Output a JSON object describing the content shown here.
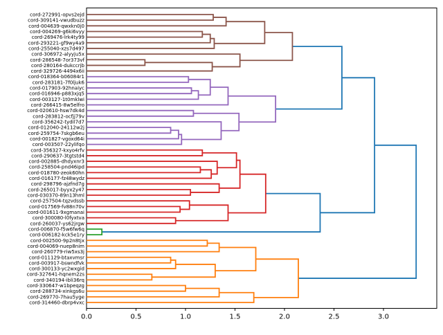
{
  "chart_data": {
    "type": "dendrogram",
    "orientation": "left_labels_right_growing",
    "title": "",
    "xlabel": "",
    "ylabel": "",
    "grid": false,
    "xlim": [
      0,
      3.54
    ],
    "x_tick_labels": [
      "0.0",
      "0.5",
      "1.0",
      "1.5",
      "2.0",
      "2.5",
      "3.0"
    ],
    "x_tick_values": [
      0.0,
      0.5,
      1.0,
      1.5,
      2.0,
      2.5,
      3.0
    ],
    "palette": {
      "blue": "#1f77b4",
      "orange": "#ff7f0e",
      "green": "#2ca02c",
      "red": "#d62728",
      "purple": "#9467bd",
      "brown": "#8c564b",
      "frame": "#000000"
    },
    "leaf_labels": [
      "cord-272991-opvs2ejd",
      "cord-309141-vwudbuzz",
      "cord-004639-qwxkn0j0",
      "cord-004269-g6ki6vyy",
      "cord-269476-lrk4ty99",
      "cord-293221-gf9wy4a9",
      "cord-255040-xzs7d497",
      "cord-306972-alyyju5x",
      "cord-286548-7or373vf",
      "cord-280164-dukccrjb",
      "cord-329726-4494x6ii",
      "cord-018364-b06084r1",
      "cord-283181-7f0ljuk6",
      "cord-017903-92hnaiyc",
      "cord-016946-p883xjq5",
      "cord-003127-1t0mklwi",
      "cord-266415-8w5elfro",
      "cord-020610-hsw7dk4d",
      "cord-283812-ocfjj79v",
      "cord-356242-tydil7d7",
      "cord-012040-24112w2j",
      "cord-259754-7skgb6eu",
      "cord-001827-vgoxd64i",
      "cord-003507-22ylifqo",
      "cord-356327-kxyo4rfv",
      "cord-290637-3tgtstd4",
      "cord-002885-dhdyxnr3",
      "cord-258504-pnd46ipd",
      "cord-018780-zeok60hn",
      "cord-016177-fz48wydz",
      "cord-298796-ajzfnd7g",
      "cord-265017-byyx2y47",
      "cord-030370-89n13hml",
      "cord-257504-tqzvdssb",
      "cord-017569-fv88n70v",
      "cord-001611-9xgmanai",
      "cord-300080-l0fyxtva",
      "cord-260037-ys62jrgw",
      "cord-006870-f5w6fw6q",
      "cord-006182-kck5e1ry",
      "cord-002500-9p2n8tjx",
      "cord-004069-nuep8nim",
      "cord-260779-riw5xs3j",
      "cord-011129-btaxvmsr",
      "cord-003917-bswndfvk",
      "cord-300133-yc2wxgid",
      "cord-327641-hqnem2zs",
      "cord-340194-ibli36rq",
      "cord-330647-w1bpeqzg",
      "cord-288734-xinkgs6u",
      "cord-269770-7hau5yge",
      "cord-314460-dbrp4vxc"
    ],
    "tree": {
      "d": 3.33,
      "c": "blue",
      "ch": [
        {
          "d": 2.91,
          "c": "blue",
          "ch": [
            {
              "d": 2.58,
              "c": "blue",
              "ch": [
                {
                  "d": 2.08,
                  "c": "brown",
                  "ch": [
                    {
                      "d": 1.8,
                      "c": "brown",
                      "ch": [
                        {
                          "d": 1.41,
                          "c": "brown",
                          "ch": [
                            {
                              "d": 1.28,
                              "c": "brown",
                              "ch": [
                                {
                                  "leaf": 0
                                },
                                {
                                  "leaf": 1
                                }
                              ]
                            },
                            {
                              "leaf": 2
                            }
                          ]
                        },
                        {
                          "d": 1.29,
                          "c": "brown",
                          "ch": [
                            {
                              "d": 1.25,
                              "c": "brown",
                              "ch": [
                                {
                                  "d": 1.17,
                                  "c": "brown",
                                  "ch": [
                                    {
                                      "leaf": 3
                                    },
                                    {
                                      "leaf": 4
                                    }
                                  ]
                                },
                                {
                                  "leaf": 5
                                }
                              ]
                            },
                            {
                              "leaf": 6
                            }
                          ]
                        }
                      ]
                    },
                    {
                      "d": 1.55,
                      "c": "brown",
                      "ch": [
                        {
                          "leaf": 7
                        },
                        {
                          "d": 1.27,
                          "c": "brown",
                          "ch": [
                            {
                              "d": 0.59,
                              "c": "brown",
                              "ch": [
                                {
                                  "leaf": 8
                                },
                                {
                                  "leaf": 9
                                }
                              ]
                            },
                            {
                              "leaf": 10
                            }
                          ]
                        }
                      ]
                    }
                  ]
                },
                {
                  "d": 1.91,
                  "c": "purple",
                  "ch": [
                    {
                      "d": 1.43,
                      "c": "purple",
                      "ch": [
                        {
                          "d": 1.25,
                          "c": "purple",
                          "ch": [
                            {
                              "d": 1.03,
                              "c": "purple",
                              "ch": [
                                {
                                  "leaf": 11
                                },
                                {
                                  "leaf": 12
                                }
                              ]
                            },
                            {
                              "d": 1.13,
                              "c": "purple",
                              "ch": [
                                {
                                  "d": 1.06,
                                  "c": "purple",
                                  "ch": [
                                    {
                                      "leaf": 13
                                    },
                                    {
                                      "leaf": 14
                                    }
                                  ]
                                },
                                {
                                  "leaf": 15
                                }
                              ]
                            }
                          ]
                        },
                        {
                          "leaf": 16
                        }
                      ]
                    },
                    {
                      "d": 1.54,
                      "c": "purple",
                      "ch": [
                        {
                          "d": 1.08,
                          "c": "purple",
                          "ch": [
                            {
                              "leaf": 17
                            },
                            {
                              "leaf": 18
                            }
                          ]
                        },
                        {
                          "d": 1.36,
                          "c": "purple",
                          "ch": [
                            {
                              "leaf": 19
                            },
                            {
                              "d": 0.96,
                              "c": "purple",
                              "ch": [
                                {
                                  "d": 0.93,
                                  "c": "purple",
                                  "ch": [
                                    {
                                      "d": 0.85,
                                      "c": "purple",
                                      "ch": [
                                        {
                                          "leaf": 20
                                        },
                                        {
                                          "leaf": 21
                                        }
                                      ]
                                    },
                                    {
                                      "leaf": 22
                                    }
                                  ]
                                },
                                {
                                  "leaf": 23
                                }
                              ]
                            }
                          ]
                        }
                      ]
                    }
                  ]
                }
              ]
            },
            {
              "d": 2.36,
              "c": "blue",
              "ch": [
                {
                  "d": 1.81,
                  "c": "red",
                  "ch": [
                    {
                      "d": 1.55,
                      "c": "red",
                      "ch": [
                        {
                          "d": 1.515,
                          "c": "red",
                          "ch": [
                            {
                              "d": 1.17,
                              "c": "red",
                              "ch": [
                                {
                                  "leaf": 24
                                },
                                {
                                  "leaf": 25
                                }
                              ]
                            },
                            {
                              "d": 1.32,
                              "c": "red",
                              "ch": [
                                {
                                  "leaf": 26
                                },
                                {
                                  "d": 1.26,
                                  "c": "red",
                                  "ch": [
                                    {
                                      "d": 1.15,
                                      "c": "red",
                                      "ch": [
                                        {
                                          "leaf": 27
                                        },
                                        {
                                          "leaf": 28
                                        }
                                      ]
                                    },
                                    {
                                      "leaf": 29
                                    }
                                  ]
                                }
                              ]
                            }
                          ]
                        },
                        {
                          "d": 1.34,
                          "c": "red",
                          "ch": [
                            {
                              "leaf": 30
                            },
                            {
                              "d": 1.05,
                              "c": "red",
                              "ch": [
                                {
                                  "leaf": 31
                                },
                                {
                                  "leaf": 32
                                }
                              ]
                            }
                          ]
                        }
                      ]
                    },
                    {
                      "d": 1.43,
                      "c": "red",
                      "ch": [
                        {
                          "d": 1.04,
                          "c": "red",
                          "ch": [
                            {
                              "leaf": 33
                            },
                            {
                              "d": 0.945,
                              "c": "red",
                              "ch": [
                                {
                                  "leaf": 34
                                },
                                {
                                  "leaf": 35
                                }
                              ]
                            }
                          ]
                        },
                        {
                          "d": 0.9,
                          "c": "red",
                          "ch": [
                            {
                              "leaf": 36
                            },
                            {
                              "leaf": 37
                            }
                          ]
                        }
                      ]
                    }
                  ]
                },
                {
                  "d": 0.155,
                  "c": "green",
                  "ch": [
                    {
                      "leaf": 38
                    },
                    {
                      "leaf": 39
                    }
                  ]
                }
              ]
            }
          ]
        },
        {
          "d": 2.14,
          "c": "orange",
          "ch": [
            {
              "d": 1.71,
              "c": "orange",
              "ch": [
                {
                  "d": 1.34,
                  "c": "orange",
                  "ch": [
                    {
                      "d": 1.22,
                      "c": "orange",
                      "ch": [
                        {
                          "leaf": 40
                        },
                        {
                          "leaf": 41
                        }
                      ]
                    },
                    {
                      "leaf": 42
                    }
                  ]
                },
                {
                  "d": 1.3,
                  "c": "orange",
                  "ch": [
                    {
                      "d": 0.9,
                      "c": "orange",
                      "ch": [
                        {
                          "d": 0.85,
                          "c": "orange",
                          "ch": [
                            {
                              "leaf": 43
                            },
                            {
                              "leaf": 44
                            }
                          ]
                        },
                        {
                          "leaf": 45
                        }
                      ]
                    },
                    {
                      "d": 0.66,
                      "c": "orange",
                      "ch": [
                        {
                          "leaf": 46
                        },
                        {
                          "leaf": 47
                        }
                      ]
                    }
                  ]
                }
              ]
            },
            {
              "d": 1.69,
              "c": "orange",
              "ch": [
                {
                  "d": 1.34,
                  "c": "orange",
                  "ch": [
                    {
                      "d": 1.0,
                      "c": "orange",
                      "ch": [
                        {
                          "leaf": 48
                        },
                        {
                          "leaf": 49
                        }
                      ]
                    },
                    {
                      "leaf": 50
                    }
                  ]
                },
                {
                  "leaf": 51
                }
              ]
            }
          ]
        }
      ]
    }
  }
}
